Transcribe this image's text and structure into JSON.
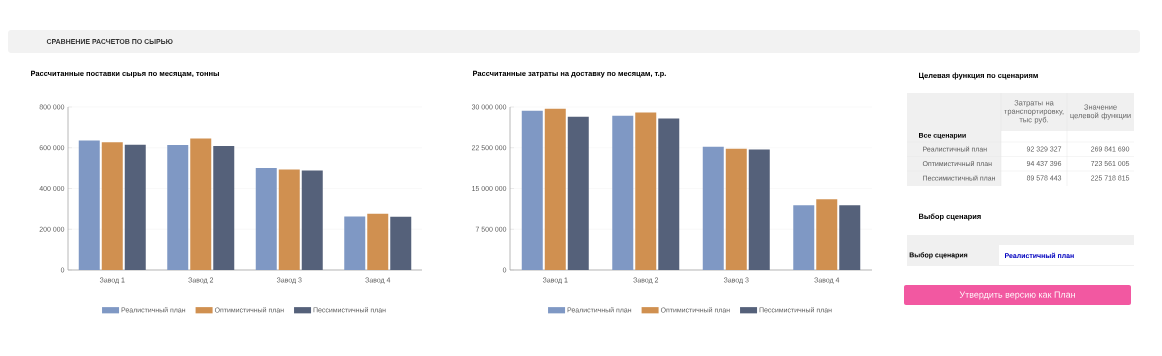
{
  "chart_data": [
    {
      "type": "other",
      "title": "СРАВНЕНИЕ РАСЧЕТОВ ПО СЫРЬЮ"
    },
    {
      "type": "bar",
      "title": "Рассчитанные поставки сырья по месяцам, тонны",
      "categories": [
        "Завод 1",
        "Завод 2",
        "Завод 3",
        "Завод 4"
      ],
      "series": [
        {
          "name": "Реалистичный план",
          "color": "#7f98c4",
          "values": [
            636000,
            614000,
            500000,
            263000
          ]
        },
        {
          "name": "Оптимистичный план",
          "color": "#d09050",
          "values": [
            627000,
            646000,
            493000,
            276000
          ]
        },
        {
          "name": "Пессимистичный план",
          "color": "#55617a",
          "values": [
            615000,
            609000,
            488000,
            261000
          ]
        }
      ],
      "ylim": [
        0,
        800000
      ],
      "yticks": [
        0,
        {
          "value": 200000,
          "label": "200 000"
        },
        {
          "value": 400000,
          "label": "400 000"
        },
        {
          "value": 600000,
          "label": "600 000"
        },
        {
          "value": 800000,
          "label": "800 000"
        }
      ],
      "grid": "y",
      "legend": "bottom"
    },
    {
      "type": "bar",
      "title": "Рассчитанные затраты на доставку по месяцам, т.р.",
      "categories": [
        "Завод 1",
        "Завод 2",
        "Завод 3",
        "Завод 4"
      ],
      "series": [
        {
          "name": "Реалистичный план",
          "color": "#7f98c4",
          "values": [
            29300000,
            28400000,
            22700000,
            11900000
          ]
        },
        {
          "name": "Оптимистичный план",
          "color": "#d09050",
          "values": [
            29700000,
            29000000,
            22300000,
            13000000
          ]
        },
        {
          "name": "Пессимистичный план",
          "color": "#55617a",
          "values": [
            28200000,
            27900000,
            22200000,
            11900000
          ]
        }
      ],
      "ylim": [
        0,
        30000000
      ],
      "yticks": [
        0,
        {
          "value": 7500000,
          "label": "7 500 000"
        },
        {
          "value": 15000000,
          "label": "15 000 000"
        },
        {
          "value": 22500000,
          "label": "22 500 000"
        },
        {
          "value": 30000000,
          "label": "30 000 000"
        }
      ],
      "grid": "y",
      "legend": "bottom"
    },
    {
      "type": "other",
      "title": "Целевая функция по сценариям",
      "annotations": [
        "Затраты на транспортировку, тыс руб.",
        "Значение целевой функции",
        "Все сценарии",
        "Реалистичный план",
        "92 329 327",
        "269 841 690",
        "Оптимистичный план",
        "94 437 396",
        "723 561 005",
        "Пессимистичный план",
        "89 578 443",
        "225 718 815"
      ]
    },
    {
      "type": "other",
      "title": "Выбор сценария",
      "annotations": [
        "Выбор сценария",
        "Реалистичный план",
        "Утвердить версию как План"
      ]
    }
  ]
}
